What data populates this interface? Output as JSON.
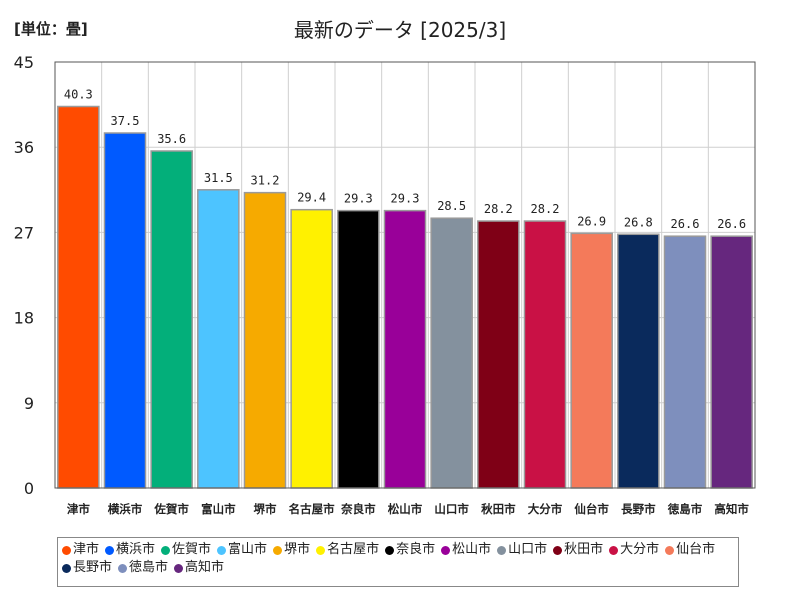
{
  "unit_label": "[単位：畳]",
  "chart_data": {
    "type": "bar",
    "title": "最新のデータ [2025/3]",
    "categories": [
      "津市",
      "横浜市",
      "佐賀市",
      "富山市",
      "堺市",
      "名古屋市",
      "奈良市",
      "松山市",
      "山口市",
      "秋田市",
      "大分市",
      "仙台市",
      "長野市",
      "徳島市",
      "高知市"
    ],
    "values": [
      40.3,
      37.5,
      35.6,
      31.5,
      31.2,
      29.4,
      29.3,
      29.3,
      28.5,
      28.2,
      28.2,
      26.9,
      26.8,
      26.6,
      26.6
    ],
    "value_labels": [
      "40.3",
      "37.5",
      "35.6",
      "31.5",
      "31.2",
      "29.4",
      "29.3",
      "29.3",
      "28.5",
      "28.2",
      "28.2",
      "26.9",
      "26.8",
      "26.6",
      "26.6"
    ],
    "colors": [
      "#ff4b00",
      "#005aff",
      "#03af7a",
      "#4dc4ff",
      "#f6aa00",
      "#fff100",
      "#000000",
      "#990099",
      "#84919e",
      "#7f0016",
      "#c91145",
      "#f47a5a",
      "#0a2a5c",
      "#7e8fbd",
      "#66277e"
    ],
    "yticks": [
      "0",
      "9",
      "18",
      "27",
      "36",
      "45"
    ],
    "ylim": [
      0,
      45
    ],
    "grid": true,
    "legend": "bottom"
  }
}
